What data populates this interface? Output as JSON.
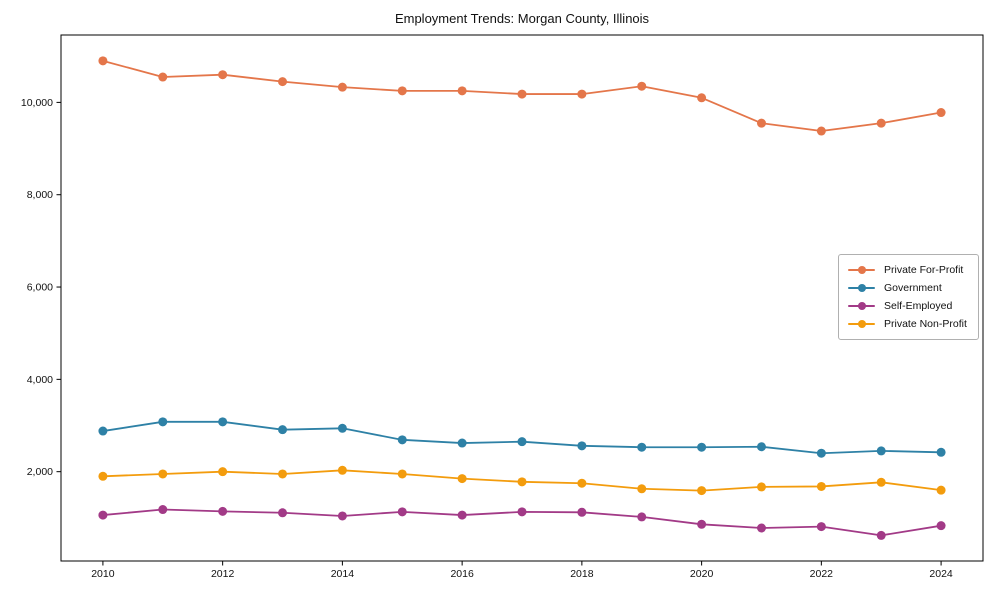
{
  "figure": {
    "background": "#ffffff",
    "frame_color": "#000000",
    "tick_color": "#000000",
    "legend_border_color": "#b0b0b0"
  },
  "chart_data": {
    "type": "line",
    "title": "Employment Trends: Morgan County, Illinois",
    "xlabel": "",
    "ylabel": "",
    "grid": false,
    "legend_position": "center-right",
    "marker": "circle",
    "x": [
      2010,
      2011,
      2012,
      2013,
      2014,
      2015,
      2016,
      2017,
      2018,
      2019,
      2020,
      2021,
      2022,
      2023,
      2024
    ],
    "series": [
      {
        "name": "Private For-Profit",
        "color": "#e4764a",
        "values": [
          10900,
          10550,
          10600,
          10450,
          10330,
          10250,
          10250,
          10180,
          10180,
          10350,
          10100,
          9550,
          9380,
          9550,
          9780
        ]
      },
      {
        "name": "Government",
        "color": "#2e81a6",
        "values": [
          2880,
          3080,
          3080,
          2910,
          2940,
          2690,
          2620,
          2650,
          2560,
          2530,
          2530,
          2540,
          2400,
          2450,
          2420
        ]
      },
      {
        "name": "Self-Employed",
        "color": "#a23a87",
        "values": [
          1060,
          1180,
          1140,
          1110,
          1040,
          1130,
          1060,
          1130,
          1120,
          1020,
          860,
          780,
          810,
          620,
          830
        ]
      },
      {
        "name": "Private Non-Profit",
        "color": "#f39c0d",
        "values": [
          1900,
          1950,
          2000,
          1950,
          2030,
          1950,
          1850,
          1780,
          1750,
          1630,
          1590,
          1670,
          1680,
          1770,
          1600
        ]
      }
    ],
    "xticks": {
      "values": [
        2010,
        2012,
        2014,
        2016,
        2018,
        2020,
        2022,
        2024
      ],
      "labels": [
        "2010",
        "2012",
        "2014",
        "2016",
        "2018",
        "2020",
        "2022",
        "2024"
      ]
    },
    "yticks": {
      "values": [
        2000,
        4000,
        6000,
        8000,
        10000
      ],
      "labels": [
        "2,000",
        "4,000",
        "6,000",
        "8,000",
        "10,000"
      ]
    },
    "xlim": [
      2009.3,
      2024.7
    ],
    "ylim": [
      65,
      11460
    ]
  }
}
